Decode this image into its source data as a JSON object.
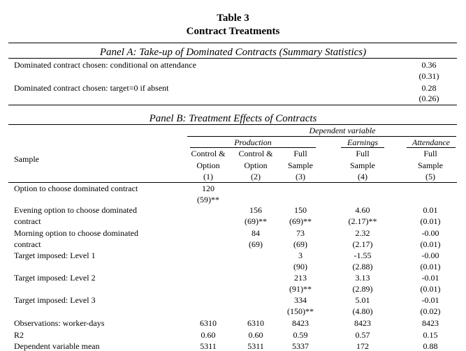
{
  "table": {
    "title": "Table 3",
    "subtitle": "Contract Treatments"
  },
  "panel_a": {
    "title": "Panel A: Take-up of Dominated Contracts (Summary Statistics)",
    "rows": [
      {
        "label": "Dominated contract chosen: conditional on attendance",
        "value": "0.36",
        "se": "(0.31)"
      },
      {
        "label": "Dominated contract chosen: target=0 if absent",
        "value": "0.28",
        "se": "(0.26)"
      }
    ]
  },
  "panel_b": {
    "title": "Panel B: Treatment Effects of Contracts",
    "dep_var": "Dependent variable",
    "groups": [
      "Production",
      "Earnings",
      "Attendance"
    ],
    "sample_label": "Sample",
    "col_headers": [
      {
        "l1": "Control &",
        "l2": "Option",
        "num": "(1)"
      },
      {
        "l1": "Control &",
        "l2": "Option",
        "num": "(2)"
      },
      {
        "l1": "Full",
        "l2": "Sample",
        "num": "(3)"
      },
      {
        "l1": "Full",
        "l2": "Sample",
        "num": "(4)"
      },
      {
        "l1": "Full",
        "l2": "Sample",
        "num": "(5)"
      }
    ],
    "rows": [
      {
        "label1": "Option to choose dominated contract",
        "label2": "",
        "v": [
          "120",
          "",
          "",
          "",
          ""
        ],
        "s": [
          "(59)**",
          "",
          "",
          "",
          ""
        ]
      },
      {
        "label1": "Evening option to choose dominated",
        "label2": "contract",
        "v": [
          "",
          "156",
          "150",
          "4.60",
          "0.01"
        ],
        "s": [
          "",
          "(69)**",
          "(69)**",
          "(2.17)**",
          "(0.01)"
        ]
      },
      {
        "label1": "Morning option to choose dominated",
        "label2": "contract",
        "v": [
          "",
          "84",
          "73",
          "2.32",
          "-0.00"
        ],
        "s": [
          "",
          "(69)",
          "(69)",
          "(2.17)",
          "(0.01)"
        ]
      },
      {
        "label1": "Target imposed: Level 1",
        "label2": "",
        "v": [
          "",
          "",
          "3",
          "-1.55",
          "-0.00"
        ],
        "s": [
          "",
          "",
          "(90)",
          "(2.88)",
          "(0.01)"
        ]
      },
      {
        "label1": "Target imposed: Level 2",
        "label2": "",
        "v": [
          "",
          "",
          "213",
          "3.13",
          "-0.01"
        ],
        "s": [
          "",
          "",
          "(91)**",
          "(2.89)",
          "(0.01)"
        ]
      },
      {
        "label1": "Target imposed: Level 3",
        "label2": "",
        "v": [
          "",
          "",
          "334",
          "5.01",
          "-0.01"
        ],
        "s": [
          "",
          "",
          "(150)**",
          "(4.80)",
          "(0.02)"
        ]
      }
    ],
    "stats": [
      {
        "label": "Observations: worker-days",
        "v": [
          "6310",
          "6310",
          "8423",
          "8423",
          "8423"
        ]
      },
      {
        "label": "R2",
        "v": [
          "0.60",
          "0.60",
          "0.59",
          "0.57",
          "0.15"
        ]
      },
      {
        "label": "Dependent variable mean",
        "v": [
          "5311",
          "5311",
          "5337",
          "172",
          "0.88"
        ]
      }
    ]
  }
}
